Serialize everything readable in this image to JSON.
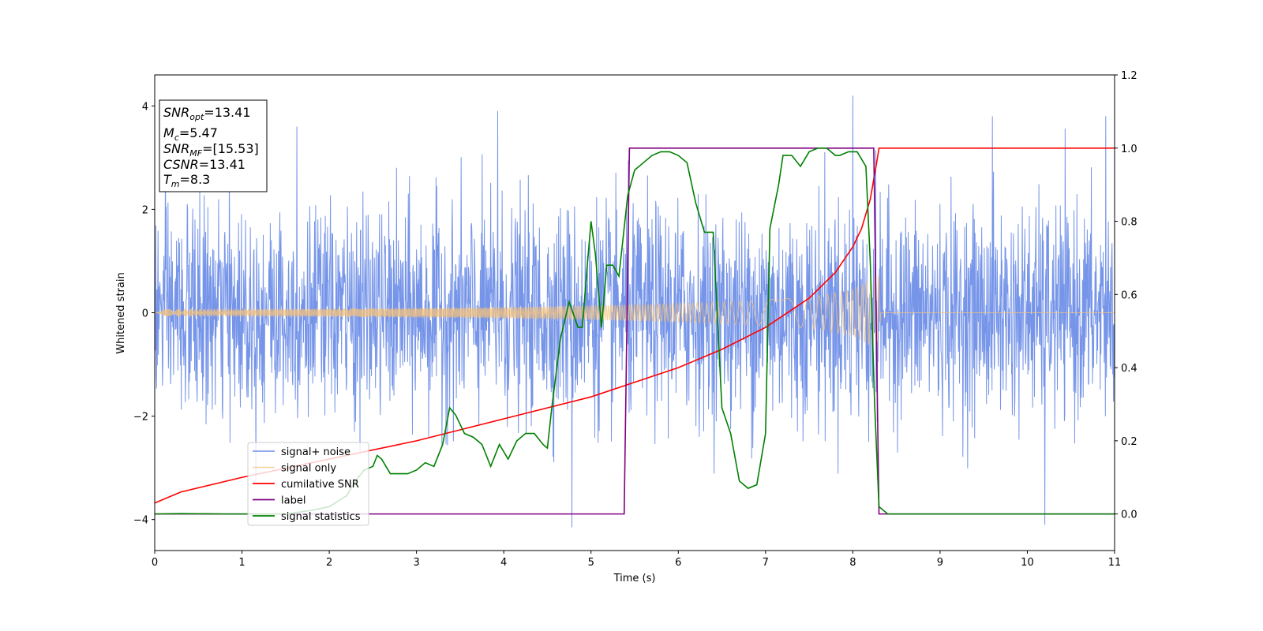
{
  "chart_data": {
    "type": "line",
    "xlabel": "Time (s)",
    "ylabel": "Whitened strain",
    "xlim": [
      0,
      11
    ],
    "ylim": [
      -4.6,
      4.6
    ],
    "y2lim": [
      -0.1,
      1.2
    ],
    "x_ticks": [
      "0",
      "1",
      "2",
      "3",
      "4",
      "5",
      "6",
      "7",
      "8",
      "9",
      "10",
      "11"
    ],
    "y_ticks": [
      "−4",
      "−2",
      "0",
      "2",
      "4"
    ],
    "y2_ticks": [
      "0.0",
      "0.2",
      "0.4",
      "0.6",
      "0.8",
      "1.0",
      "1.2"
    ],
    "legend_position": "lower-left",
    "annotation": {
      "snr_opt": {
        "base": "SNR",
        "sub": "opt",
        "value": "=13.41"
      },
      "mc": {
        "base": "M",
        "sub": "c",
        "value": "=5.47"
      },
      "snr_mf": {
        "base": "SNR",
        "sub": "MF",
        "value": "=[15.53]"
      },
      "csnr": {
        "base": "CSNR",
        "sub": "",
        "value": "=13.41"
      },
      "tm": {
        "base": "T",
        "sub": "m",
        "value": "=8.3"
      }
    },
    "series": [
      {
        "name": "signal+ noise",
        "color": "#6f8fe8",
        "axis": "left",
        "noise_std": 1.0,
        "peak_points": [
          [
            1.63,
            3.6
          ],
          [
            3.93,
            3.9
          ],
          [
            4.78,
            -4.15
          ],
          [
            8.0,
            4.2
          ],
          [
            9.6,
            3.8
          ],
          [
            10.2,
            -4.1
          ],
          [
            10.9,
            3.8
          ]
        ]
      },
      {
        "name": "signal only",
        "color": "#f5c27a",
        "axis": "left",
        "envelope": [
          [
            0,
            0.07
          ],
          [
            2,
            0.08
          ],
          [
            4,
            0.11
          ],
          [
            5,
            0.14
          ],
          [
            6,
            0.18
          ],
          [
            7,
            0.25
          ],
          [
            7.5,
            0.3
          ],
          [
            8.0,
            0.45
          ],
          [
            8.25,
            0.7
          ],
          [
            8.3,
            0.75
          ],
          [
            8.32,
            0.0
          ],
          [
            11,
            0.0
          ]
        ]
      },
      {
        "name": "cumilative SNR",
        "color": "#ff0000",
        "axis": "right",
        "points": [
          [
            0,
            0.03
          ],
          [
            0.3,
            0.06
          ],
          [
            1,
            0.1
          ],
          [
            2,
            0.15
          ],
          [
            3,
            0.2
          ],
          [
            4,
            0.26
          ],
          [
            5,
            0.32
          ],
          [
            5.5,
            0.36
          ],
          [
            6,
            0.4
          ],
          [
            6.5,
            0.45
          ],
          [
            7,
            0.51
          ],
          [
            7.5,
            0.59
          ],
          [
            7.8,
            0.66
          ],
          [
            8.0,
            0.73
          ],
          [
            8.1,
            0.78
          ],
          [
            8.2,
            0.86
          ],
          [
            8.28,
            0.97
          ],
          [
            8.3,
            1.0
          ],
          [
            11,
            1.0
          ]
        ]
      },
      {
        "name": "label",
        "color": "#800080",
        "axis": "right",
        "points": [
          [
            0,
            0.0
          ],
          [
            5.38,
            0.0
          ],
          [
            5.44,
            1.0
          ],
          [
            8.24,
            1.0
          ],
          [
            8.3,
            0.0
          ],
          [
            11,
            0.0
          ]
        ]
      },
      {
        "name": "signal statistics",
        "color": "#008000",
        "axis": "right",
        "points": [
          [
            0,
            0.0
          ],
          [
            0.3,
            0.001
          ],
          [
            0.8,
            0.0
          ],
          [
            1.5,
            0.0
          ],
          [
            1.8,
            0.01
          ],
          [
            2.0,
            0.02
          ],
          [
            2.2,
            0.05
          ],
          [
            2.3,
            0.09
          ],
          [
            2.4,
            0.12
          ],
          [
            2.5,
            0.13
          ],
          [
            2.55,
            0.16
          ],
          [
            2.6,
            0.15
          ],
          [
            2.7,
            0.11
          ],
          [
            2.8,
            0.11
          ],
          [
            2.85,
            0.11
          ],
          [
            2.9,
            0.11
          ],
          [
            3.0,
            0.12
          ],
          [
            3.1,
            0.14
          ],
          [
            3.2,
            0.13
          ],
          [
            3.3,
            0.19
          ],
          [
            3.38,
            0.29
          ],
          [
            3.45,
            0.27
          ],
          [
            3.55,
            0.22
          ],
          [
            3.65,
            0.21
          ],
          [
            3.75,
            0.19
          ],
          [
            3.85,
            0.13
          ],
          [
            3.95,
            0.19
          ],
          [
            4.05,
            0.15
          ],
          [
            4.15,
            0.2
          ],
          [
            4.25,
            0.22
          ],
          [
            4.35,
            0.22
          ],
          [
            4.45,
            0.19
          ],
          [
            4.5,
            0.18
          ],
          [
            4.55,
            0.29
          ],
          [
            4.65,
            0.48
          ],
          [
            4.75,
            0.58
          ],
          [
            4.85,
            0.51
          ],
          [
            4.9,
            0.51
          ],
          [
            4.95,
            0.66
          ],
          [
            5.0,
            0.8
          ],
          [
            5.05,
            0.71
          ],
          [
            5.12,
            0.51
          ],
          [
            5.18,
            0.68
          ],
          [
            5.25,
            0.68
          ],
          [
            5.32,
            0.65
          ],
          [
            5.42,
            0.87
          ],
          [
            5.5,
            0.94
          ],
          [
            5.6,
            0.96
          ],
          [
            5.7,
            0.98
          ],
          [
            5.8,
            0.99
          ],
          [
            5.9,
            0.99
          ],
          [
            6.0,
            0.98
          ],
          [
            6.1,
            0.96
          ],
          [
            6.2,
            0.85
          ],
          [
            6.3,
            0.77
          ],
          [
            6.4,
            0.77
          ],
          [
            6.5,
            0.29
          ],
          [
            6.6,
            0.22
          ],
          [
            6.7,
            0.09
          ],
          [
            6.8,
            0.07
          ],
          [
            6.9,
            0.08
          ],
          [
            7.0,
            0.22
          ],
          [
            7.05,
            0.78
          ],
          [
            7.15,
            0.9
          ],
          [
            7.2,
            0.98
          ],
          [
            7.3,
            0.98
          ],
          [
            7.4,
            0.95
          ],
          [
            7.5,
            0.99
          ],
          [
            7.6,
            1.0
          ],
          [
            7.7,
            1.0
          ],
          [
            7.8,
            0.98
          ],
          [
            7.85,
            0.98
          ],
          [
            7.95,
            0.99
          ],
          [
            8.05,
            0.99
          ],
          [
            8.15,
            0.95
          ],
          [
            8.2,
            0.69
          ],
          [
            8.25,
            0.3
          ],
          [
            8.3,
            0.02
          ],
          [
            8.4,
            0.0
          ],
          [
            11,
            0.0
          ]
        ]
      }
    ]
  }
}
